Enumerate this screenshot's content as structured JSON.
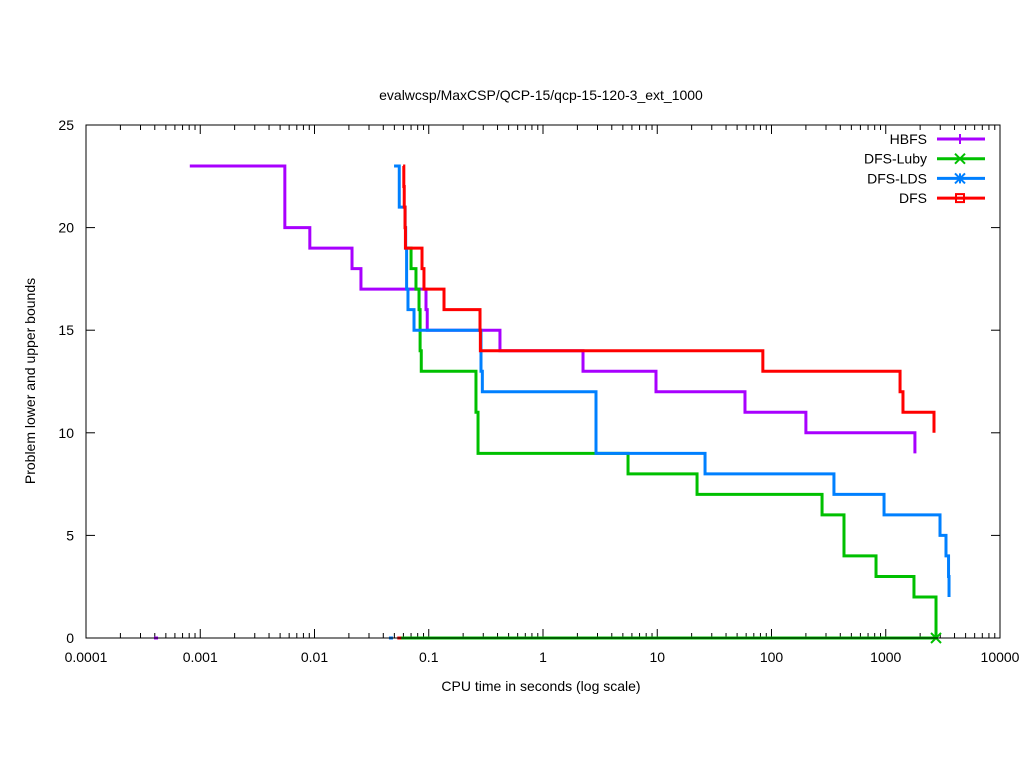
{
  "chart_data": {
    "type": "line",
    "title": "evalwcsp/MaxCSP/QCP-15/qcp-15-120-3_ext_1000",
    "xlabel": "CPU time in seconds (log scale)",
    "ylabel": "Problem lower and upper bounds",
    "xscale": "log",
    "xlim": [
      0.0001,
      10000
    ],
    "ylim": [
      0,
      25
    ],
    "xticks": [
      0.0001,
      0.001,
      0.01,
      0.1,
      1,
      10,
      100,
      1000,
      10000
    ],
    "xtick_labels": [
      "0.0001",
      "0.001",
      "0.01",
      "0.1",
      "1",
      "10",
      "100",
      "1000",
      "10000"
    ],
    "yticks": [
      0,
      5,
      10,
      15,
      20,
      25
    ],
    "ytick_labels": [
      "0",
      "5",
      "10",
      "15",
      "20",
      "25"
    ],
    "grid": false,
    "legend_position": "top-right",
    "line_style": "steps",
    "series": [
      {
        "name": "HBFS",
        "color": "#a800ff",
        "marker": "plus",
        "upper": [
          [
            0.00081,
            23
          ],
          [
            0.0055,
            20
          ],
          [
            0.0091,
            19
          ],
          [
            0.0213,
            18
          ],
          [
            0.0255,
            17
          ],
          [
            0.0946,
            16
          ],
          [
            0.097,
            15
          ],
          [
            0.42,
            14
          ],
          [
            2.24,
            13
          ],
          [
            9.75,
            12
          ],
          [
            58.6,
            11
          ],
          [
            200,
            10
          ],
          [
            1800,
            9
          ]
        ],
        "lower": [
          [
            0.00041,
            0
          ]
        ]
      },
      {
        "name": "DFS-Luby",
        "color": "#00c000",
        "marker": "x",
        "upper": [
          [
            0.0632,
            19
          ],
          [
            0.07,
            18
          ],
          [
            0.0773,
            17
          ],
          [
            0.0822,
            16
          ],
          [
            0.084,
            14
          ],
          [
            0.086,
            13
          ],
          [
            0.259,
            11
          ],
          [
            0.27,
            9
          ],
          [
            5.55,
            8
          ],
          [
            22.3,
            7
          ],
          [
            277,
            6
          ],
          [
            431,
            4
          ],
          [
            822,
            3
          ],
          [
            1766,
            2
          ],
          [
            2754,
            0
          ]
        ],
        "lower": [
          [
            0.056,
            0
          ],
          [
            2754,
            0
          ]
        ]
      },
      {
        "name": "DFS-LDS",
        "color": "#0080ff",
        "marker": "star",
        "upper": [
          [
            0.0497,
            23
          ],
          [
            0.0552,
            21
          ],
          [
            0.0621,
            20
          ],
          [
            0.0628,
            19
          ],
          [
            0.064,
            17
          ],
          [
            0.0658,
            16
          ],
          [
            0.0743,
            15
          ],
          [
            0.2866,
            13
          ],
          [
            0.2945,
            12
          ],
          [
            2.91,
            9
          ],
          [
            26.2,
            8
          ],
          [
            352,
            7
          ],
          [
            966,
            6
          ],
          [
            2985,
            5
          ],
          [
            3367,
            4
          ],
          [
            3545,
            3
          ],
          [
            3580,
            2
          ]
        ],
        "lower": [
          [
            0.0467,
            0
          ]
        ]
      },
      {
        "name": "DFS",
        "color": "#ff0000",
        "marker": "square",
        "upper": [
          [
            0.0596,
            23
          ],
          [
            0.0605,
            22
          ],
          [
            0.061,
            21
          ],
          [
            0.062,
            20
          ],
          [
            0.0625,
            19
          ],
          [
            0.0873,
            18
          ],
          [
            0.0908,
            17
          ],
          [
            0.136,
            16
          ],
          [
            0.281,
            15
          ],
          [
            0.283,
            14
          ],
          [
            84,
            13
          ],
          [
            1334,
            12
          ],
          [
            1415,
            11
          ],
          [
            2644,
            10
          ]
        ],
        "lower": [
          [
            0.0552,
            0
          ]
        ]
      }
    ]
  }
}
